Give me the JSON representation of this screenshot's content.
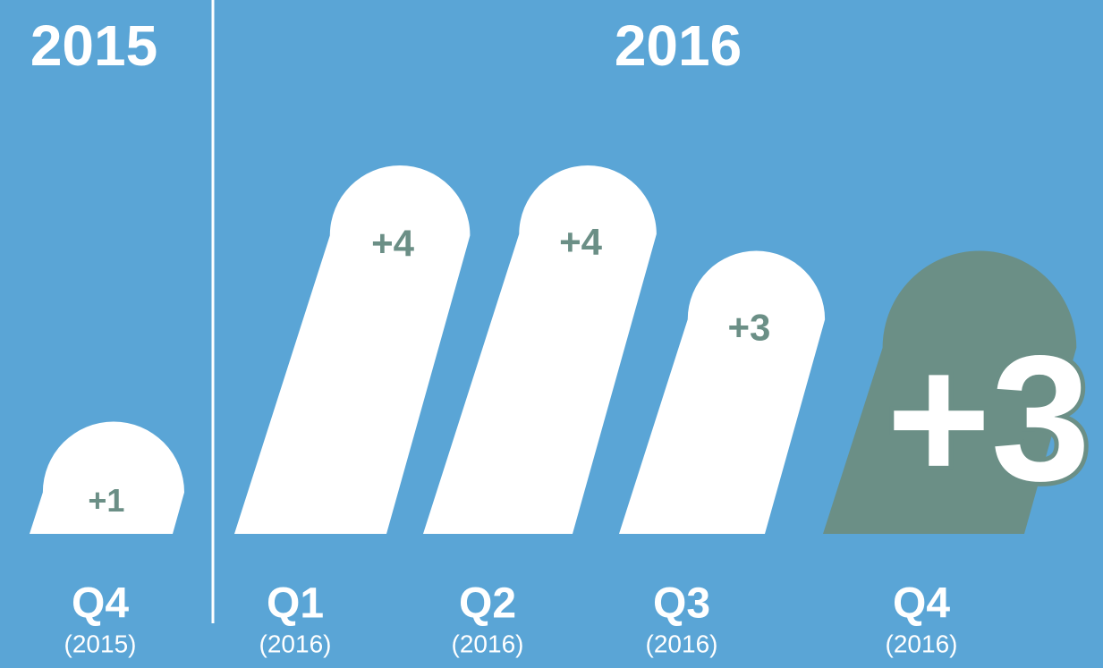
{
  "chart_data": {
    "type": "bar",
    "headers": [
      "2015",
      "2016"
    ],
    "categories": [
      "Q4",
      "Q1",
      "Q2",
      "Q3",
      "Q4"
    ],
    "sublabels": [
      "(2015)",
      "(2016)",
      "(2016)",
      "(2016)",
      "(2016)"
    ],
    "values": [
      1,
      4,
      4,
      3,
      3
    ],
    "value_labels": [
      "+1",
      "+4",
      "+4",
      "+3",
      "+3"
    ],
    "color": "#ffffff",
    "label_color": "#6b8f86",
    "highlight": 4,
    "highlight_color": "#6b8f86",
    "background": "#5aa5d6"
  }
}
